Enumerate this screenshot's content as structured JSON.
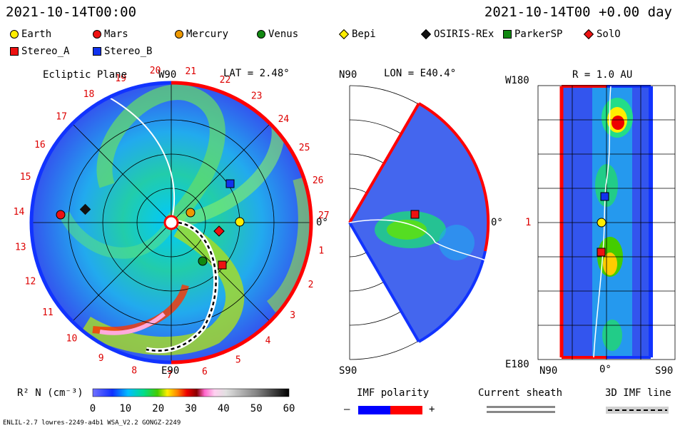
{
  "header": {
    "left_datetime": "2021-10-14T00:00",
    "right_datetime": "2021-10-14T00 +0.00 day"
  },
  "legend": [
    {
      "label": "Earth",
      "shape": "circle",
      "color": "#ffee00"
    },
    {
      "label": "Mars",
      "shape": "circle",
      "color": "#ee1111"
    },
    {
      "label": "Mercury",
      "shape": "circle",
      "color": "#ee9900"
    },
    {
      "label": "Venus",
      "shape": "circle",
      "color": "#118811"
    },
    {
      "label": "Bepi",
      "shape": "diamond",
      "color": "#ffee00"
    },
    {
      "label": "OSIRIS-REx",
      "shape": "diamond",
      "color": "#111111"
    },
    {
      "label": "ParkerSP",
      "shape": "square",
      "color": "#118811"
    },
    {
      "label": "SolO",
      "shape": "diamond",
      "color": "#ee1111"
    },
    {
      "label": "Stereo_A",
      "shape": "square",
      "color": "#ee1111"
    },
    {
      "label": "Stereo_B",
      "shape": "square",
      "color": "#1133ee"
    }
  ],
  "panels": {
    "ecliptic": {
      "title": "Ecliptic Plane",
      "top_label": "W90",
      "lat_label": "LAT = 2.48°",
      "bottom_label": "E90",
      "right_label": "0°"
    },
    "meridional": {
      "top_label": "N90",
      "lon_label": "LON = E40.4°",
      "bottom_label": "S90",
      "right_label": "0°"
    },
    "radial": {
      "r_label": "R = 1.0 AU",
      "top_left": "W180",
      "mid_left": "1",
      "bottom_left": "E180",
      "x_left": "N90",
      "x_mid": "0°",
      "x_right": "S90"
    }
  },
  "chart_data": {
    "type": "heatmap",
    "colorbar": {
      "label": "R² N (cm⁻³)",
      "ticks": [
        "0",
        "10",
        "20",
        "30",
        "40",
        "50",
        "60"
      ],
      "range": [
        0,
        60
      ]
    },
    "carrington_sectors": [
      "20",
      "21",
      "22",
      "23",
      "24",
      "25",
      "26",
      "27",
      "1",
      "2",
      "3",
      "4",
      "5",
      "6",
      "7",
      "8",
      "9",
      "10",
      "11",
      "12",
      "13",
      "14",
      "15",
      "16",
      "17",
      "18",
      "19"
    ],
    "bodies_ecliptic": [
      {
        "name": "Earth",
        "color": "#ffee00",
        "shape": "circle"
      },
      {
        "name": "Mars",
        "color": "#ee1111",
        "shape": "circle"
      },
      {
        "name": "Mercury",
        "color": "#ee9900",
        "shape": "circle"
      },
      {
        "name": "Venus",
        "color": "#118811",
        "shape": "circle"
      },
      {
        "name": "OSIRIS-REx",
        "color": "#111111",
        "shape": "diamond"
      },
      {
        "name": "SolO",
        "color": "#ee1111",
        "shape": "diamond"
      },
      {
        "name": "Stereo_A",
        "color": "#ee1111",
        "shape": "square"
      },
      {
        "name": "Stereo_B",
        "color": "#1133ee",
        "shape": "square"
      }
    ]
  },
  "bottom_legends": {
    "imf_polarity": {
      "title": "IMF polarity",
      "minus": "–",
      "plus": "+",
      "neg_color": "#0000ff",
      "pos_color": "#ff0000"
    },
    "current_sheath": {
      "title": "Current sheath"
    },
    "imf_line": {
      "title": "3D IMF line"
    }
  },
  "footer": {
    "model_info": "ENLIL-2.7 lowres-2249-a4b1 WSA_V2.2 GONGZ-2249"
  }
}
